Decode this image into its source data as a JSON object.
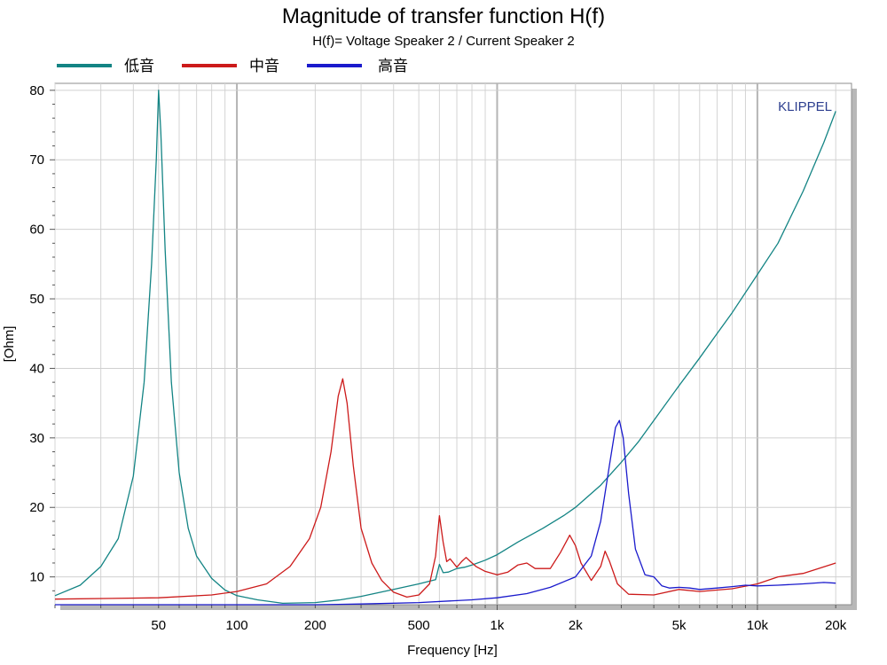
{
  "chart_data": {
    "type": "line",
    "title": "Magnitude of transfer function H(f)",
    "subtitle": "H(f)= Voltage Speaker 2 / Current Speaker 2",
    "xlabel": "Frequency [Hz]",
    "ylabel": "[Ohm]",
    "xscale": "log",
    "xlim": [
      20,
      23000
    ],
    "ylim": [
      6,
      81
    ],
    "x_ticks": [
      50,
      100,
      200,
      500,
      1000,
      2000,
      5000,
      10000,
      20000
    ],
    "x_tick_labels": [
      "50",
      "100",
      "200",
      "500",
      "1k",
      "2k",
      "5k",
      "10k",
      "20k"
    ],
    "y_ticks": [
      10,
      20,
      30,
      40,
      50,
      60,
      70,
      80
    ],
    "y_tick_labels": [
      "10",
      "20",
      "30",
      "40",
      "50",
      "60",
      "70",
      "80"
    ],
    "grid": true,
    "legend_position": "top-left",
    "watermark": "KLIPPEL",
    "series": [
      {
        "name": "低音",
        "color": "#138484",
        "x": [
          20,
          25,
          30,
          35,
          40,
          44,
          47,
          49,
          50,
          51,
          53,
          56,
          60,
          65,
          70,
          80,
          90,
          100,
          120,
          150,
          200,
          250,
          300,
          400,
          500,
          580,
          600,
          620,
          650,
          700,
          750,
          800,
          900,
          1000,
          1200,
          1500,
          1800,
          2000,
          2500,
          3000,
          3500,
          4000,
          5000,
          6000,
          7000,
          8000,
          10000,
          12000,
          15000,
          18000,
          20000
        ],
        "values": [
          7.3,
          8.8,
          11.5,
          15.5,
          24.5,
          38,
          55,
          70,
          80,
          74,
          57,
          38,
          25,
          17,
          13,
          9.8,
          8.1,
          7.3,
          6.7,
          6.2,
          6.3,
          6.7,
          7.2,
          8.2,
          9,
          9.6,
          11.8,
          10.6,
          10.7,
          11.2,
          11.4,
          11.7,
          12.4,
          13.2,
          15,
          17,
          18.8,
          20,
          23.2,
          26.5,
          29.5,
          32.5,
          37.5,
          41.5,
          45,
          48,
          53.5,
          58,
          65.5,
          72.5,
          77
        ]
      },
      {
        "name": "中音",
        "color": "#cc1a1a",
        "x": [
          20,
          50,
          80,
          100,
          130,
          160,
          190,
          210,
          230,
          245,
          255,
          265,
          280,
          300,
          330,
          360,
          400,
          450,
          500,
          550,
          580,
          600,
          620,
          640,
          660,
          680,
          700,
          730,
          760,
          790,
          830,
          900,
          1000,
          1100,
          1200,
          1300,
          1400,
          1600,
          1750,
          1900,
          2000,
          2100,
          2300,
          2500,
          2600,
          2700,
          2900,
          3200,
          4000,
          5000,
          6000,
          8000,
          10000,
          12000,
          15000,
          20000
        ],
        "values": [
          6.8,
          7,
          7.4,
          7.9,
          9,
          11.5,
          15.5,
          20,
          28,
          36,
          38.5,
          35,
          26,
          17,
          12,
          9.5,
          7.8,
          7.1,
          7.4,
          9,
          13,
          18.8,
          15,
          12.2,
          12.6,
          12,
          11.4,
          12.2,
          12.8,
          12.2,
          11.5,
          10.8,
          10.3,
          10.7,
          11.7,
          12,
          11.2,
          11.2,
          13.5,
          16,
          14.5,
          12,
          9.5,
          11.5,
          13.7,
          12.3,
          9,
          7.5,
          7.4,
          8.2,
          7.9,
          8.3,
          9,
          10,
          10.5,
          12
        ]
      },
      {
        "name": "高音",
        "color": "#1a1acc",
        "x": [
          20,
          100,
          200,
          300,
          500,
          800,
          1000,
          1300,
          1600,
          2000,
          2300,
          2500,
          2700,
          2850,
          2950,
          3050,
          3200,
          3400,
          3700,
          4000,
          4300,
          4600,
          5000,
          5500,
          6000,
          7000,
          8000,
          9000,
          10000,
          12000,
          15000,
          18000,
          20000
        ],
        "values": [
          6,
          6,
          6,
          6.1,
          6.3,
          6.7,
          7,
          7.6,
          8.5,
          10,
          13,
          18,
          26,
          31.5,
          32.5,
          30,
          22,
          14,
          10.3,
          10,
          8.7,
          8.4,
          8.5,
          8.4,
          8.2,
          8.4,
          8.6,
          8.8,
          8.7,
          8.8,
          9,
          9.2,
          9.1
        ]
      }
    ]
  }
}
